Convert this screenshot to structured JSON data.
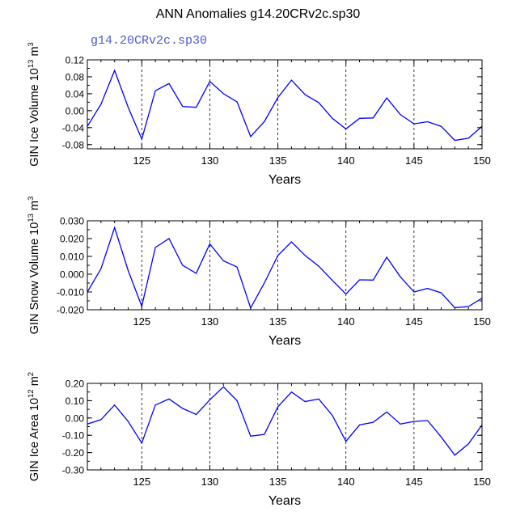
{
  "title": "ANN Anomalies g14.20CRv2c.sp30",
  "case_label": "g14.20CRv2c.sp30",
  "colors": {
    "line": "#0000ff",
    "case_label": "#4a5bd1",
    "text": "#000000",
    "ref_lines": "#000000"
  },
  "chart_data": [
    {
      "type": "line",
      "ylabel": {
        "prefix": "GIN Ice Volume 10",
        "exp": "13",
        "unit": " m",
        "unit_exp": "3"
      },
      "xlabel": "Years",
      "xlim": [
        121,
        150
      ],
      "ylim": [
        -0.09,
        0.12
      ],
      "yticks": [
        0.12,
        0.08,
        0.04,
        0.0,
        -0.04,
        -0.08
      ],
      "ytick_labels": [
        "0.12",
        "0.08",
        "0.04",
        "0.00",
        "-0.04",
        "-0.08"
      ],
      "xticks": [
        125,
        130,
        135,
        140,
        145,
        150
      ],
      "xtick_labels": [
        "125",
        "130",
        "135",
        "140",
        "145",
        "150"
      ],
      "ref_lines_x": [
        125,
        130,
        135,
        140,
        145
      ],
      "x": [
        121,
        122,
        123,
        124,
        125,
        126,
        127,
        128,
        129,
        130,
        131,
        132,
        133,
        134,
        135,
        136,
        137,
        138,
        139,
        140,
        141,
        142,
        143,
        144,
        145,
        146,
        147,
        148,
        149,
        150
      ],
      "values": [
        -0.037,
        0.015,
        0.095,
        0.008,
        -0.067,
        0.047,
        0.064,
        0.01,
        0.008,
        0.069,
        0.04,
        0.021,
        -0.061,
        -0.026,
        0.031,
        0.072,
        0.038,
        0.019,
        -0.018,
        -0.043,
        -0.018,
        -0.017,
        0.03,
        -0.009,
        -0.031,
        -0.026,
        -0.037,
        -0.07,
        -0.065,
        -0.037
      ]
    },
    {
      "type": "line",
      "ylabel": {
        "prefix": "GIN Snow Volume 10",
        "exp": "13",
        "unit": " m",
        "unit_exp": "3"
      },
      "xlabel": "Years",
      "xlim": [
        121,
        150
      ],
      "ylim": [
        -0.02,
        0.03
      ],
      "yticks": [
        0.03,
        0.02,
        0.01,
        0.0,
        -0.01,
        -0.02
      ],
      "ytick_labels": [
        "0.030",
        "0.020",
        "0.010",
        "0.000",
        "-0.010",
        "-0.020"
      ],
      "xticks": [
        125,
        130,
        135,
        140,
        145,
        150
      ],
      "xtick_labels": [
        "125",
        "130",
        "135",
        "140",
        "145",
        "150"
      ],
      "ref_lines_x": [
        125,
        130,
        135,
        140,
        145
      ],
      "x": [
        121,
        122,
        123,
        124,
        125,
        126,
        127,
        128,
        129,
        130,
        131,
        132,
        133,
        134,
        135,
        136,
        137,
        138,
        139,
        140,
        141,
        142,
        143,
        144,
        145,
        146,
        147,
        148,
        149,
        150
      ],
      "values": [
        -0.01,
        0.003,
        0.0262,
        0.002,
        -0.018,
        0.015,
        0.02,
        0.005,
        0.0005,
        0.017,
        0.0075,
        0.004,
        -0.019,
        -0.005,
        0.0105,
        0.0182,
        0.0105,
        0.0045,
        -0.0035,
        -0.0112,
        -0.0032,
        -0.0033,
        0.0095,
        -0.0015,
        -0.01,
        -0.008,
        -0.0105,
        -0.0188,
        -0.0182,
        -0.0135
      ]
    },
    {
      "type": "line",
      "ylabel": {
        "prefix": "GIN Ice Area 10",
        "exp": "12",
        "unit": " m",
        "unit_exp": "2"
      },
      "xlabel": "Years",
      "xlim": [
        121,
        150
      ],
      "ylim": [
        -0.3,
        0.2
      ],
      "yticks": [
        0.2,
        0.1,
        0.0,
        -0.1,
        -0.2,
        -0.3
      ],
      "ytick_labels": [
        "0.20",
        "0.10",
        "0.00",
        "-0.10",
        "-0.20",
        "-0.30"
      ],
      "xticks": [
        125,
        130,
        135,
        140,
        145,
        150
      ],
      "xtick_labels": [
        "125",
        "130",
        "135",
        "140",
        "145",
        "150"
      ],
      "ref_lines_x": [
        125,
        130,
        135,
        140,
        145
      ],
      "x": [
        121,
        122,
        123,
        124,
        125,
        126,
        127,
        128,
        129,
        130,
        131,
        132,
        133,
        134,
        135,
        136,
        137,
        138,
        139,
        140,
        141,
        142,
        143,
        144,
        145,
        146,
        147,
        148,
        149,
        150
      ],
      "values": [
        -0.035,
        -0.01,
        0.075,
        -0.02,
        -0.145,
        0.075,
        0.11,
        0.055,
        0.02,
        0.105,
        0.18,
        0.1,
        -0.105,
        -0.095,
        0.065,
        0.15,
        0.095,
        0.11,
        0.015,
        -0.135,
        -0.04,
        -0.025,
        0.035,
        -0.035,
        -0.02,
        -0.015,
        -0.11,
        -0.215,
        -0.15,
        -0.04
      ]
    }
  ]
}
